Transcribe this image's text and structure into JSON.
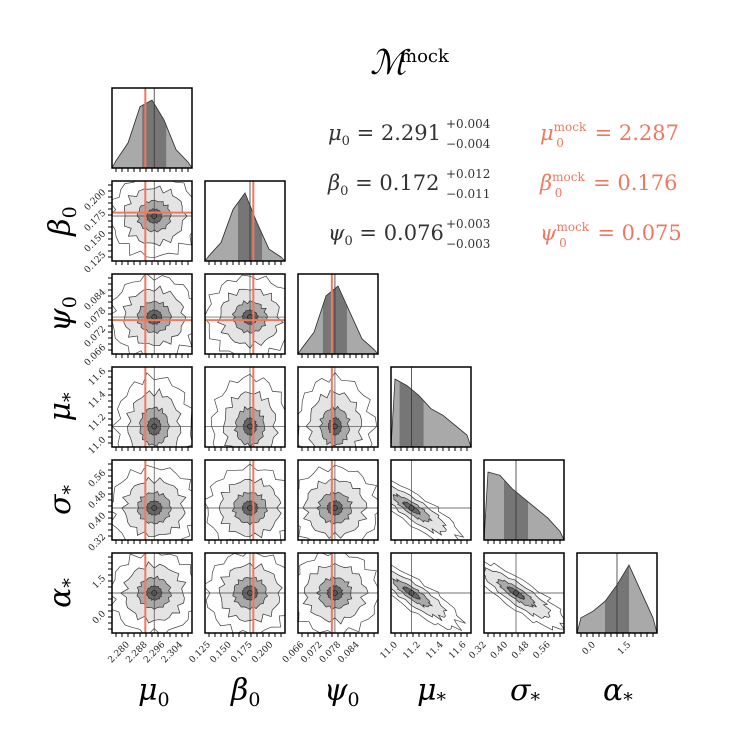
{
  "title": {
    "base": "ℳ",
    "sup": "mock"
  },
  "colors": {
    "truth": "#f07860",
    "frame": "#000000",
    "dark": "#666666",
    "mid": "#a9a9a9",
    "light": "#e4e4e4",
    "stat_black": "#333333",
    "stat_mock": "#f07860"
  },
  "stats": [
    {
      "sym": "μ",
      "sub": "0",
      "value": "2.291",
      "plus": "+0.004",
      "minus": "−0.004",
      "mock_value": "2.287",
      "mock_sup": "mock"
    },
    {
      "sym": "β",
      "sub": "0",
      "value": "0.172",
      "plus": "+0.012",
      "minus": "−0.011",
      "mock_value": "0.176",
      "mock_sup": "mock"
    },
    {
      "sym": "ψ",
      "sub": "0",
      "value": "0.076",
      "plus": "+0.003",
      "minus": "−0.003",
      "mock_value": "0.075",
      "mock_sup": "mock"
    }
  ],
  "chart_data": {
    "type": "corner",
    "parameters": [
      {
        "sym": "μ",
        "sub": "0",
        "ticks": [
          "2.280",
          "2.288",
          "2.296",
          "2.304"
        ],
        "tick_values": [
          2.28,
          2.288,
          2.296,
          2.304
        ],
        "range": [
          2.272,
          2.308
        ],
        "median": 2.291,
        "truth": 2.287
      },
      {
        "sym": "β",
        "sub": "0",
        "ticks": [
          "0.125",
          "0.150",
          "0.175",
          "0.200"
        ],
        "tick_values": [
          0.125,
          0.15,
          0.175,
          0.2
        ],
        "range": [
          0.118,
          0.214
        ],
        "median": 0.172,
        "truth": 0.176
      },
      {
        "sym": "ψ",
        "sub": "0",
        "ticks": [
          "0.066",
          "0.072",
          "0.078",
          "0.084"
        ],
        "tick_values": [
          0.066,
          0.072,
          0.078,
          0.084
        ],
        "range": [
          0.064,
          0.09
        ],
        "median": 0.076,
        "truth": 0.075
      },
      {
        "sym": "μ",
        "sub": "*",
        "ticks": [
          "11.0",
          "11.2",
          "11.4",
          "11.6"
        ],
        "tick_values": [
          11.0,
          11.2,
          11.4,
          11.6
        ],
        "range": [
          10.94,
          11.64
        ],
        "median": 11.12,
        "truth": null
      },
      {
        "sym": "σ",
        "sub": "*",
        "ticks": [
          "0.32",
          "0.40",
          "0.48",
          "0.56"
        ],
        "tick_values": [
          0.32,
          0.4,
          0.48,
          0.56
        ],
        "range": [
          0.31,
          0.61
        ],
        "median": 0.43,
        "truth": null
      },
      {
        "sym": "α",
        "sub": "*",
        "ticks": [
          "0.0",
          "1.5"
        ],
        "tick_values": [
          0.0,
          1.5
        ],
        "range": [
          -0.8,
          2.6
        ],
        "median": 0.9,
        "truth": null
      }
    ],
    "marginal_1d_shape": [
      [
        0.08,
        0.35,
        0.9,
        1.0,
        0.7,
        0.25,
        0.06
      ],
      [
        0.05,
        0.25,
        0.75,
        1.0,
        0.55,
        0.15,
        0.03
      ],
      [
        0.06,
        0.3,
        0.85,
        1.0,
        0.6,
        0.2,
        0.04
      ],
      [
        1.0,
        0.9,
        0.75,
        0.55,
        0.45,
        0.3,
        0.15
      ],
      [
        1.0,
        0.95,
        0.75,
        0.6,
        0.45,
        0.3,
        0.1
      ],
      [
        0.2,
        0.3,
        0.45,
        0.7,
        1.0,
        0.6,
        0.2
      ]
    ],
    "credible_levels": [
      "39%",
      "86%",
      "99%"
    ]
  }
}
